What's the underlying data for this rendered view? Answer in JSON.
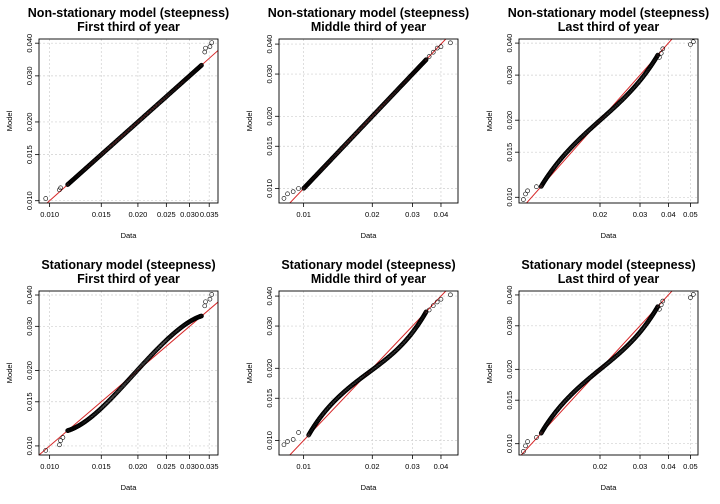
{
  "figure": {
    "colors": {
      "points": "#000000",
      "reference_line": "#d62728",
      "grid": "#cfcfcf",
      "frame": "#000000"
    }
  },
  "chart_data": [
    {
      "type": "scatter",
      "title": "Non-stationary model (steepness)",
      "subtitle": "First third of year",
      "xlabel": "Data",
      "ylabel": "Model",
      "scale": "log",
      "xlim": [
        0.0092,
        0.0375
      ],
      "ylim": [
        0.0098,
        0.0415
      ],
      "xticks": [
        0.01,
        0.015,
        0.02,
        0.025,
        0.03,
        0.035
      ],
      "xticklabels": [
        "0.010",
        "0.015",
        "0.020",
        "0.025",
        "0.030",
        "0.035"
      ],
      "yticks": [
        0.01,
        0.015,
        0.02,
        0.03,
        0.04
      ],
      "yticklabels": [
        "0.010",
        "0.015",
        "0.020",
        "0.030",
        "0.040"
      ],
      "grid": true,
      "reference_line": "y = x",
      "qq": {
        "n": 220,
        "tail_low": [
          [
            0.0097,
            0.0102
          ],
          [
            0.0108,
            0.011
          ],
          [
            0.0109,
            0.0112
          ]
        ],
        "tail_high": [
          [
            0.0338,
            0.037
          ],
          [
            0.034,
            0.0383
          ],
          [
            0.0352,
            0.0388
          ],
          [
            0.0357,
            0.0402
          ]
        ],
        "lo": 0.0115,
        "hi": 0.033,
        "dev": 0.0
      }
    },
    {
      "type": "scatter",
      "title": "Non-stationary model (steepness)",
      "subtitle": "Middle third of year",
      "xlabel": "Data",
      "ylabel": "Model",
      "scale": "log",
      "xlim": [
        0.0078,
        0.0475
      ],
      "ylim": [
        0.0087,
        0.042
      ],
      "xticks": [
        0.01,
        0.02,
        0.03,
        0.04
      ],
      "xticklabels": [
        "0.01",
        "0.02",
        "0.03",
        "0.04"
      ],
      "yticks": [
        0.01,
        0.015,
        0.02,
        0.03,
        0.04
      ],
      "yticklabels": [
        "0.010",
        "0.015",
        "0.020",
        "0.030",
        "0.040"
      ],
      "grid": true,
      "reference_line": "y = x",
      "qq": {
        "n": 220,
        "tail_low": [
          [
            0.0082,
            0.0091
          ],
          [
            0.0085,
            0.0095
          ],
          [
            0.009,
            0.0097
          ],
          [
            0.0095,
            0.01
          ]
        ],
        "tail_high": [
          [
            0.0355,
            0.0355
          ],
          [
            0.037,
            0.037
          ],
          [
            0.0385,
            0.0385
          ],
          [
            0.04,
            0.039
          ],
          [
            0.044,
            0.0405
          ]
        ],
        "lo": 0.01,
        "hi": 0.0345,
        "dev": 0.0
      }
    },
    {
      "type": "scatter",
      "title": "Non-stationary model (steepness)",
      "subtitle": "Last third of year",
      "xlabel": "Data",
      "ylabel": "Model",
      "scale": "log",
      "xlim": [
        0.0088,
        0.054
      ],
      "ylim": [
        0.0095,
        0.0415
      ],
      "xticks": [
        0.02,
        0.03,
        0.04,
        0.05
      ],
      "xticklabels": [
        "0.02",
        "0.03",
        "0.04",
        "0.05"
      ],
      "yticks": [
        0.01,
        0.015,
        0.02,
        0.03,
        0.04
      ],
      "yticklabels": [
        "0.010",
        "0.015",
        "0.020",
        "0.030",
        "0.040"
      ],
      "grid": true,
      "reference_line": "y = x",
      "qq": {
        "n": 220,
        "tail_low": [
          [
            0.0092,
            0.0098
          ],
          [
            0.0094,
            0.0103
          ],
          [
            0.0096,
            0.0106
          ],
          [
            0.0105,
            0.011
          ]
        ],
        "tail_high": [
          [
            0.0365,
            0.0352
          ],
          [
            0.0372,
            0.0365
          ],
          [
            0.0378,
            0.038
          ],
          [
            0.05,
            0.0395
          ],
          [
            0.0515,
            0.0405
          ]
        ],
        "lo": 0.011,
        "hi": 0.036,
        "dev": 0.05
      }
    },
    {
      "type": "scatter",
      "title": "Stationary model (steepness)",
      "subtitle": "First third of year",
      "xlabel": "Data",
      "ylabel": "Model",
      "scale": "log",
      "xlim": [
        0.0092,
        0.0375
      ],
      "ylim": [
        0.0092,
        0.0415
      ],
      "xticks": [
        0.01,
        0.015,
        0.02,
        0.025,
        0.03,
        0.035
      ],
      "xticklabels": [
        "0.010",
        "0.015",
        "0.020",
        "0.025",
        "0.030",
        "0.035"
      ],
      "yticks": [
        0.01,
        0.015,
        0.02,
        0.03,
        0.04
      ],
      "yticklabels": [
        "0.010",
        "0.015",
        "0.020",
        "0.030",
        "0.040"
      ],
      "grid": true,
      "reference_line": "y = x",
      "qq": {
        "n": 220,
        "tail_low": [
          [
            0.0097,
            0.0096
          ],
          [
            0.0108,
            0.0101
          ],
          [
            0.0109,
            0.0105
          ],
          [
            0.0111,
            0.0108
          ]
        ],
        "tail_high": [
          [
            0.0338,
            0.0362
          ],
          [
            0.034,
            0.0376
          ],
          [
            0.0352,
            0.0385
          ],
          [
            0.0357,
            0.0402
          ]
        ],
        "lo": 0.0115,
        "hi": 0.033,
        "dev": -0.06
      }
    },
    {
      "type": "scatter",
      "title": "Stationary model (steepness)",
      "subtitle": "Middle third of year",
      "xlabel": "Data",
      "ylabel": "Model",
      "scale": "log",
      "xlim": [
        0.0078,
        0.0475
      ],
      "ylim": [
        0.0087,
        0.042
      ],
      "xticks": [
        0.01,
        0.02,
        0.03,
        0.04
      ],
      "xticklabels": [
        "0.01",
        "0.02",
        "0.03",
        "0.04"
      ],
      "yticks": [
        0.01,
        0.015,
        0.02,
        0.03,
        0.04
      ],
      "yticklabels": [
        "0.010",
        "0.015",
        "0.020",
        "0.030",
        "0.040"
      ],
      "grid": true,
      "reference_line": "y = x",
      "qq": {
        "n": 220,
        "tail_low": [
          [
            0.0082,
            0.0096
          ],
          [
            0.0085,
            0.0099
          ],
          [
            0.009,
            0.0101
          ],
          [
            0.0095,
            0.0108
          ]
        ],
        "tail_high": [
          [
            0.0355,
            0.035
          ],
          [
            0.037,
            0.0365
          ],
          [
            0.0385,
            0.0378
          ],
          [
            0.04,
            0.0388
          ],
          [
            0.044,
            0.0405
          ]
        ],
        "lo": 0.0105,
        "hi": 0.0345,
        "dev": 0.07
      }
    },
    {
      "type": "scatter",
      "title": "Stationary model (steepness)",
      "subtitle": "Last third of year",
      "xlabel": "Data",
      "ylabel": "Model",
      "scale": "log",
      "xlim": [
        0.0088,
        0.054
      ],
      "ylim": [
        0.009,
        0.0415
      ],
      "xticks": [
        0.02,
        0.03,
        0.04,
        0.05
      ],
      "xticklabels": [
        "0.02",
        "0.03",
        "0.04",
        "0.05"
      ],
      "yticks": [
        0.01,
        0.015,
        0.02,
        0.03,
        0.04
      ],
      "yticklabels": [
        "0.010",
        "0.015",
        "0.020",
        "0.030",
        "0.040"
      ],
      "grid": true,
      "reference_line": "y = x",
      "qq": {
        "n": 220,
        "tail_low": [
          [
            0.0092,
            0.0093
          ],
          [
            0.0094,
            0.0098
          ],
          [
            0.0096,
            0.0102
          ],
          [
            0.0105,
            0.0106
          ]
        ],
        "tail_high": [
          [
            0.0365,
            0.035
          ],
          [
            0.0372,
            0.0365
          ],
          [
            0.0378,
            0.0378
          ],
          [
            0.05,
            0.039
          ],
          [
            0.0515,
            0.0402
          ]
        ],
        "lo": 0.011,
        "hi": 0.036,
        "dev": 0.06
      }
    }
  ]
}
